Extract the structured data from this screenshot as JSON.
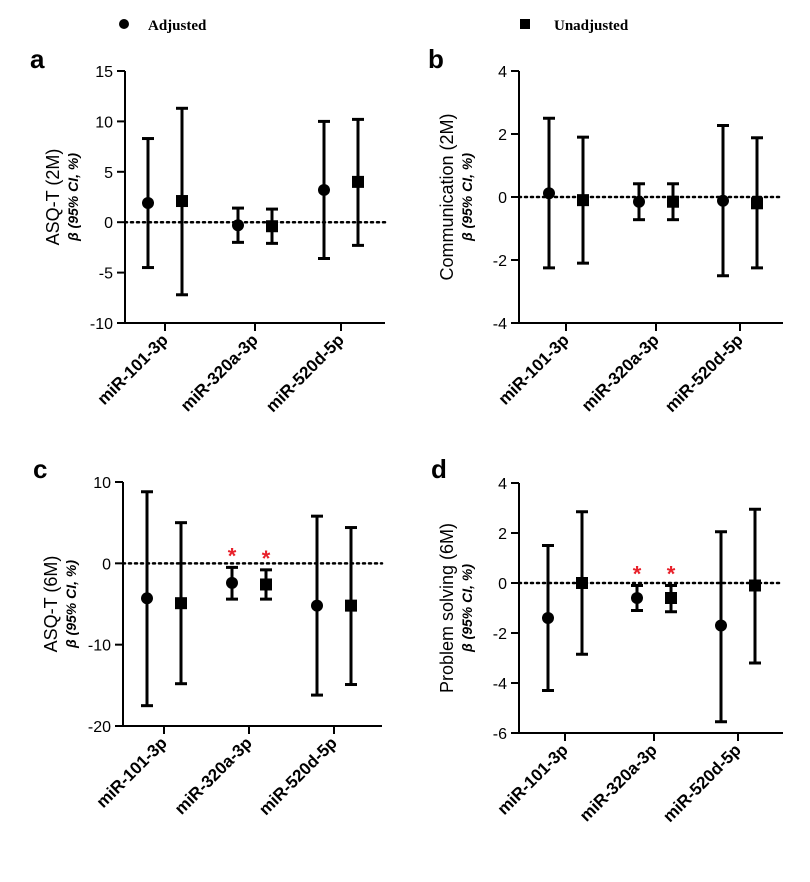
{
  "legend": {
    "adjusted_label": "Adjusted",
    "unadjusted_label": "Unadjusted"
  },
  "colors": {
    "marks": "#000000",
    "significance": "#e8202a"
  },
  "chart_data": [
    {
      "panel": "a",
      "type": "scatter",
      "error_bars": true,
      "title": "",
      "ylabel": "ASQ-T (2M)",
      "ylabel2": "β (95% CI, %)",
      "categories": [
        "miR-101-3p",
        "miR-320a-3p",
        "miR-520d-5p"
      ],
      "ylim": [
        -10,
        15
      ],
      "yticks": [
        -10,
        -5,
        0,
        5,
        10,
        15
      ],
      "reference_line": 0,
      "series": [
        {
          "name": "Adjusted",
          "marker": "circle",
          "values": [
            1.9,
            -0.3,
            3.2
          ],
          "lower": [
            -4.5,
            -2.0,
            -3.6
          ],
          "upper": [
            8.3,
            1.4,
            10.0
          ]
        },
        {
          "name": "Unadjusted",
          "marker": "square",
          "values": [
            2.1,
            -0.4,
            4.0
          ],
          "lower": [
            -7.2,
            -2.1,
            -2.3
          ],
          "upper": [
            11.3,
            1.3,
            10.2
          ]
        }
      ],
      "significant": []
    },
    {
      "panel": "b",
      "type": "scatter",
      "error_bars": true,
      "title": "",
      "ylabel": "Communication (2M)",
      "ylabel2": "β (95% CI, %)",
      "categories": [
        "miR-101-3p",
        "miR-320a-3p",
        "miR-520d-5p"
      ],
      "ylim": [
        -4,
        4
      ],
      "yticks": [
        -4,
        -2,
        0,
        2,
        4
      ],
      "reference_line": 0,
      "series": [
        {
          "name": "Adjusted",
          "marker": "circle",
          "values": [
            0.12,
            -0.15,
            -0.12
          ],
          "lower": [
            -2.25,
            -0.72,
            -2.5
          ],
          "upper": [
            2.5,
            0.42,
            2.27
          ]
        },
        {
          "name": "Unadjusted",
          "marker": "square",
          "values": [
            -0.1,
            -0.15,
            -0.2
          ],
          "lower": [
            -2.1,
            -0.72,
            -2.25
          ],
          "upper": [
            1.9,
            0.42,
            1.88
          ]
        }
      ],
      "significant": []
    },
    {
      "panel": "c",
      "type": "scatter",
      "error_bars": true,
      "title": "",
      "ylabel": "ASQ-T (6M)",
      "ylabel2": "β (95% CI, %)",
      "categories": [
        "miR-101-3p",
        "miR-320a-3p",
        "miR-520d-5p"
      ],
      "ylim": [
        -20,
        10
      ],
      "yticks": [
        -20,
        -10,
        0,
        10
      ],
      "reference_line": 0,
      "series": [
        {
          "name": "Adjusted",
          "marker": "circle",
          "values": [
            -4.3,
            -2.4,
            -5.2
          ],
          "lower": [
            -17.5,
            -4.4,
            -16.2
          ],
          "upper": [
            8.8,
            -0.5,
            5.8
          ]
        },
        {
          "name": "Unadjusted",
          "marker": "square",
          "values": [
            -4.9,
            -2.6,
            -5.2
          ],
          "lower": [
            -14.8,
            -4.4,
            -14.9
          ],
          "upper": [
            5.0,
            -0.8,
            4.4
          ]
        }
      ],
      "significant": [
        {
          "category": "miR-320a-3p",
          "series": "Adjusted",
          "mark": "*"
        },
        {
          "category": "miR-320a-3p",
          "series": "Unadjusted",
          "mark": "*"
        }
      ]
    },
    {
      "panel": "d",
      "type": "scatter",
      "error_bars": true,
      "title": "",
      "ylabel": "Problem solving (6M)",
      "ylabel2": "β (95% CI, %)",
      "categories": [
        "miR-101-3p",
        "miR-320a-3p",
        "miR-520d-5p"
      ],
      "ylim": [
        -6,
        4
      ],
      "yticks": [
        -6,
        -4,
        -2,
        0,
        2,
        4
      ],
      "reference_line": 0,
      "series": [
        {
          "name": "Adjusted",
          "marker": "circle",
          "values": [
            -1.4,
            -0.6,
            -1.7
          ],
          "lower": [
            -4.3,
            -1.1,
            -5.55
          ],
          "upper": [
            1.5,
            -0.1,
            2.05
          ]
        },
        {
          "name": "Unadjusted",
          "marker": "square",
          "values": [
            0.0,
            -0.6,
            -0.1
          ],
          "lower": [
            -2.85,
            -1.15,
            -3.2
          ],
          "upper": [
            2.85,
            -0.1,
            2.95
          ]
        }
      ],
      "significant": [
        {
          "category": "miR-320a-3p",
          "series": "Adjusted",
          "mark": "*"
        },
        {
          "category": "miR-320a-3p",
          "series": "Unadjusted",
          "mark": "*"
        }
      ]
    }
  ]
}
